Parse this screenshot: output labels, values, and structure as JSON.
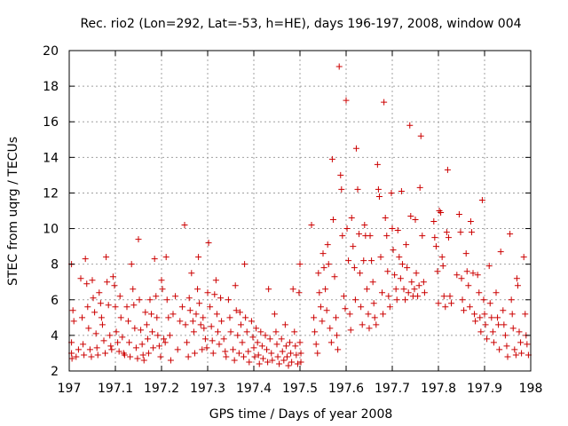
{
  "chart_data": {
    "type": "scatter",
    "title": "Rec. rio2 (Lon=292, Lat=-53, h=HE), days 196-197, 2008, window 004",
    "xlabel": "GPS time / Days of year 2008",
    "ylabel": "STEC from uqrg / TECUs",
    "xlim": [
      197,
      198
    ],
    "ylim": [
      2,
      20
    ],
    "x_ticks": [
      "197",
      "197.1",
      "197.2",
      "197.3",
      "197.4",
      "197.5",
      "197.6",
      "197.7",
      "197.8",
      "197.9",
      "198"
    ],
    "y_ticks": [
      "2",
      "4",
      "6",
      "8",
      "10",
      "12",
      "14",
      "16",
      "18",
      "20"
    ],
    "grid": true,
    "marker": "+",
    "color": "#cc0000",
    "points": [
      [
        197.005,
        8.0
      ],
      [
        197.005,
        3.6
      ],
      [
        197.005,
        3.0
      ],
      [
        197.006,
        2.7
      ],
      [
        197.008,
        5.4
      ],
      [
        197.01,
        4.8
      ],
      [
        197.015,
        2.8
      ],
      [
        197.02,
        3.2
      ],
      [
        197.025,
        7.2
      ],
      [
        197.028,
        5.0
      ],
      [
        197.03,
        3.5
      ],
      [
        197.032,
        2.9
      ],
      [
        197.035,
        8.3
      ],
      [
        197.038,
        6.9
      ],
      [
        197.04,
        5.6
      ],
      [
        197.042,
        4.4
      ],
      [
        197.045,
        3.2
      ],
      [
        197.048,
        2.8
      ],
      [
        197.05,
        7.1
      ],
      [
        197.052,
        6.1
      ],
      [
        197.055,
        5.3
      ],
      [
        197.058,
        4.1
      ],
      [
        197.06,
        3.3
      ],
      [
        197.062,
        2.9
      ],
      [
        197.065,
        6.4
      ],
      [
        197.068,
        5.8
      ],
      [
        197.07,
        5.0
      ],
      [
        197.072,
        4.6
      ],
      [
        197.075,
        3.7
      ],
      [
        197.078,
        3.0
      ],
      [
        197.08,
        8.4
      ],
      [
        197.082,
        7.0
      ],
      [
        197.085,
        5.7
      ],
      [
        197.088,
        4.0
      ],
      [
        197.09,
        3.4
      ],
      [
        197.092,
        3.2
      ],
      [
        197.095,
        7.3
      ],
      [
        197.098,
        6.8
      ],
      [
        197.1,
        5.6
      ],
      [
        197.102,
        4.2
      ],
      [
        197.105,
        3.6
      ],
      [
        197.108,
        3.1
      ],
      [
        197.11,
        6.2
      ],
      [
        197.112,
        5.0
      ],
      [
        197.115,
        3.9
      ],
      [
        197.118,
        3.0
      ],
      [
        197.12,
        2.9
      ],
      [
        197.125,
        5.6
      ],
      [
        197.128,
        4.8
      ],
      [
        197.13,
        3.6
      ],
      [
        197.132,
        2.8
      ],
      [
        197.135,
        8.0
      ],
      [
        197.138,
        6.6
      ],
      [
        197.14,
        5.7
      ],
      [
        197.142,
        4.4
      ],
      [
        197.145,
        3.3
      ],
      [
        197.148,
        2.7
      ],
      [
        197.15,
        9.4
      ],
      [
        197.152,
        6.0
      ],
      [
        197.155,
        4.3
      ],
      [
        197.158,
        3.5
      ],
      [
        197.16,
        2.9
      ],
      [
        197.162,
        2.6
      ],
      [
        197.165,
        5.3
      ],
      [
        197.168,
        4.6
      ],
      [
        197.17,
        3.8
      ],
      [
        197.172,
        3.0
      ],
      [
        197.175,
        6.0
      ],
      [
        197.178,
        5.2
      ],
      [
        197.18,
        4.2
      ],
      [
        197.182,
        3.3
      ],
      [
        197.185,
        8.3
      ],
      [
        197.188,
        6.2
      ],
      [
        197.19,
        5.0
      ],
      [
        197.192,
        4.0
      ],
      [
        197.195,
        3.4
      ],
      [
        197.198,
        2.8
      ],
      [
        197.2,
        7.1
      ],
      [
        197.202,
        6.6
      ],
      [
        197.205,
        3.8
      ],
      [
        197.208,
        3.6
      ],
      [
        197.21,
        8.4
      ],
      [
        197.212,
        6.0
      ],
      [
        197.215,
        5.0
      ],
      [
        197.218,
        4.0
      ],
      [
        197.22,
        2.6
      ],
      [
        197.225,
        5.2
      ],
      [
        197.23,
        6.2
      ],
      [
        197.235,
        3.2
      ],
      [
        197.24,
        4.8
      ],
      [
        197.245,
        5.6
      ],
      [
        197.25,
        10.2
      ],
      [
        197.252,
        4.6
      ],
      [
        197.255,
        3.6
      ],
      [
        197.258,
        2.8
      ],
      [
        197.26,
        6.1
      ],
      [
        197.262,
        5.4
      ],
      [
        197.265,
        7.5
      ],
      [
        197.268,
        4.8
      ],
      [
        197.27,
        4.2
      ],
      [
        197.272,
        3.0
      ],
      [
        197.275,
        5.2
      ],
      [
        197.278,
        6.6
      ],
      [
        197.28,
        8.4
      ],
      [
        197.282,
        5.8
      ],
      [
        197.285,
        4.6
      ],
      [
        197.288,
        3.2
      ],
      [
        197.29,
        5.0
      ],
      [
        197.292,
        4.4
      ],
      [
        197.295,
        3.8
      ],
      [
        197.298,
        3.3
      ],
      [
        197.3,
        6.4
      ],
      [
        197.302,
        9.2
      ],
      [
        197.305,
        5.6
      ],
      [
        197.308,
        4.5
      ],
      [
        197.31,
        3.7
      ],
      [
        197.312,
        3.0
      ],
      [
        197.315,
        6.3
      ],
      [
        197.318,
        7.1
      ],
      [
        197.32,
        5.2
      ],
      [
        197.322,
        4.2
      ],
      [
        197.325,
        3.5
      ],
      [
        197.328,
        6.1
      ],
      [
        197.33,
        4.8
      ],
      [
        197.335,
        3.8
      ],
      [
        197.338,
        3.1
      ],
      [
        197.34,
        2.8
      ],
      [
        197.345,
        6.0
      ],
      [
        197.348,
        5.0
      ],
      [
        197.35,
        4.2
      ],
      [
        197.355,
        3.2
      ],
      [
        197.358,
        2.6
      ],
      [
        197.36,
        6.8
      ],
      [
        197.362,
        5.4
      ],
      [
        197.365,
        4.0
      ],
      [
        197.368,
        3.0
      ],
      [
        197.37,
        5.3
      ],
      [
        197.372,
        4.6
      ],
      [
        197.375,
        3.6
      ],
      [
        197.378,
        2.8
      ],
      [
        197.38,
        8.0
      ],
      [
        197.382,
        5.0
      ],
      [
        197.385,
        4.2
      ],
      [
        197.388,
        3.1
      ],
      [
        197.39,
        2.5
      ],
      [
        197.395,
        4.8
      ],
      [
        197.398,
        3.9
      ],
      [
        197.4,
        3.3
      ],
      [
        197.402,
        2.8
      ],
      [
        197.405,
        4.4
      ],
      [
        197.408,
        3.6
      ],
      [
        197.41,
        2.9
      ],
      [
        197.412,
        2.4
      ],
      [
        197.415,
        4.2
      ],
      [
        197.418,
        3.4
      ],
      [
        197.42,
        2.7
      ],
      [
        197.425,
        4.0
      ],
      [
        197.428,
        3.2
      ],
      [
        197.43,
        2.5
      ],
      [
        197.432,
        6.6
      ],
      [
        197.435,
        3.8
      ],
      [
        197.438,
        3.0
      ],
      [
        197.44,
        2.6
      ],
      [
        197.445,
        5.2
      ],
      [
        197.448,
        4.2
      ],
      [
        197.45,
        3.5
      ],
      [
        197.452,
        2.8
      ],
      [
        197.455,
        2.4
      ],
      [
        197.46,
        3.8
      ],
      [
        197.462,
        3.1
      ],
      [
        197.465,
        2.6
      ],
      [
        197.468,
        4.6
      ],
      [
        197.47,
        3.4
      ],
      [
        197.472,
        2.8
      ],
      [
        197.475,
        2.3
      ],
      [
        197.478,
        3.6
      ],
      [
        197.48,
        3.0
      ],
      [
        197.482,
        2.5
      ],
      [
        197.485,
        6.6
      ],
      [
        197.488,
        4.2
      ],
      [
        197.49,
        3.4
      ],
      [
        197.492,
        2.9
      ],
      [
        197.495,
        2.4
      ],
      [
        197.498,
        6.4
      ],
      [
        197.5,
        8.0
      ],
      [
        197.5,
        3.6
      ],
      [
        197.502,
        3.0
      ],
      [
        197.502,
        2.5
      ],
      [
        197.525,
        10.2
      ],
      [
        197.53,
        5.0
      ],
      [
        197.532,
        4.2
      ],
      [
        197.535,
        3.5
      ],
      [
        197.538,
        3.0
      ],
      [
        197.54,
        7.5
      ],
      [
        197.542,
        6.4
      ],
      [
        197.545,
        5.6
      ],
      [
        197.548,
        4.8
      ],
      [
        197.55,
        8.6
      ],
      [
        197.552,
        7.8
      ],
      [
        197.555,
        6.6
      ],
      [
        197.558,
        5.4
      ],
      [
        197.56,
        9.1
      ],
      [
        197.562,
        8.0
      ],
      [
        197.565,
        4.4
      ],
      [
        197.568,
        3.6
      ],
      [
        197.57,
        13.9
      ],
      [
        197.572,
        10.5
      ],
      [
        197.575,
        7.3
      ],
      [
        197.578,
        5.0
      ],
      [
        197.58,
        4.0
      ],
      [
        197.582,
        3.2
      ],
      [
        197.585,
        19.1
      ],
      [
        197.588,
        13.0
      ],
      [
        197.59,
        12.2
      ],
      [
        197.592,
        9.6
      ],
      [
        197.595,
        6.2
      ],
      [
        197.598,
        5.5
      ],
      [
        197.6,
        17.2
      ],
      [
        197.602,
        10.0
      ],
      [
        197.605,
        8.2
      ],
      [
        197.608,
        5.2
      ],
      [
        197.61,
        4.3
      ],
      [
        197.612,
        10.6
      ],
      [
        197.615,
        9.0
      ],
      [
        197.618,
        7.8
      ],
      [
        197.62,
        6.0
      ],
      [
        197.622,
        14.5
      ],
      [
        197.625,
        12.2
      ],
      [
        197.628,
        9.7
      ],
      [
        197.63,
        7.5
      ],
      [
        197.632,
        5.6
      ],
      [
        197.635,
        4.6
      ],
      [
        197.638,
        8.2
      ],
      [
        197.64,
        10.2
      ],
      [
        197.642,
        9.6
      ],
      [
        197.645,
        6.6
      ],
      [
        197.648,
        5.2
      ],
      [
        197.65,
        4.4
      ],
      [
        197.652,
        9.6
      ],
      [
        197.655,
        8.2
      ],
      [
        197.658,
        7.0
      ],
      [
        197.66,
        5.8
      ],
      [
        197.662,
        5.0
      ],
      [
        197.665,
        4.6
      ],
      [
        197.668,
        13.6
      ],
      [
        197.67,
        12.2
      ],
      [
        197.672,
        11.8
      ],
      [
        197.675,
        8.4
      ],
      [
        197.678,
        6.4
      ],
      [
        197.68,
        5.2
      ],
      [
        197.682,
        17.1
      ],
      [
        197.685,
        10.6
      ],
      [
        197.688,
        9.6
      ],
      [
        197.69,
        7.6
      ],
      [
        197.692,
        6.2
      ],
      [
        197.695,
        5.6
      ],
      [
        197.698,
        12.0
      ],
      [
        197.7,
        10.0
      ],
      [
        197.702,
        8.8
      ],
      [
        197.705,
        7.4
      ],
      [
        197.708,
        6.6
      ],
      [
        197.71,
        6.0
      ],
      [
        197.712,
        9.9
      ],
      [
        197.715,
        8.4
      ],
      [
        197.718,
        7.2
      ],
      [
        197.72,
        12.1
      ],
      [
        197.722,
        8.0
      ],
      [
        197.725,
        6.6
      ],
      [
        197.728,
        6.0
      ],
      [
        197.73,
        9.1
      ],
      [
        197.732,
        7.8
      ],
      [
        197.735,
        6.4
      ],
      [
        197.738,
        15.8
      ],
      [
        197.74,
        10.7
      ],
      [
        197.742,
        7.0
      ],
      [
        197.745,
        6.2
      ],
      [
        197.748,
        6.6
      ],
      [
        197.75,
        10.5
      ],
      [
        197.752,
        7.5
      ],
      [
        197.755,
        6.2
      ],
      [
        197.758,
        6.8
      ],
      [
        197.76,
        12.3
      ],
      [
        197.762,
        15.2
      ],
      [
        197.765,
        9.6
      ],
      [
        197.768,
        7.0
      ],
      [
        197.77,
        6.4
      ],
      [
        197.79,
        10.4
      ],
      [
        197.792,
        9.5
      ],
      [
        197.795,
        9.0
      ],
      [
        197.798,
        7.6
      ],
      [
        197.8,
        5.8
      ],
      [
        197.802,
        11.0
      ],
      [
        197.805,
        10.9
      ],
      [
        197.808,
        8.4
      ],
      [
        197.81,
        7.9
      ],
      [
        197.812,
        6.2
      ],
      [
        197.815,
        5.6
      ],
      [
        197.818,
        9.8
      ],
      [
        197.82,
        13.3
      ],
      [
        197.822,
        9.5
      ],
      [
        197.825,
        6.2
      ],
      [
        197.828,
        5.8
      ],
      [
        197.84,
        7.4
      ],
      [
        197.845,
        10.8
      ],
      [
        197.848,
        9.8
      ],
      [
        197.85,
        7.2
      ],
      [
        197.852,
        6.0
      ],
      [
        197.855,
        5.4
      ],
      [
        197.86,
        8.6
      ],
      [
        197.862,
        7.6
      ],
      [
        197.865,
        6.8
      ],
      [
        197.868,
        5.6
      ],
      [
        197.87,
        10.4
      ],
      [
        197.872,
        9.8
      ],
      [
        197.875,
        7.5
      ],
      [
        197.878,
        5.2
      ],
      [
        197.88,
        4.8
      ],
      [
        197.885,
        7.4
      ],
      [
        197.888,
        6.4
      ],
      [
        197.89,
        5.0
      ],
      [
        197.892,
        4.2
      ],
      [
        197.895,
        11.6
      ],
      [
        197.898,
        6.0
      ],
      [
        197.9,
        5.2
      ],
      [
        197.902,
        4.6
      ],
      [
        197.905,
        3.8
      ],
      [
        197.91,
        7.9
      ],
      [
        197.912,
        5.8
      ],
      [
        197.915,
        5.0
      ],
      [
        197.918,
        4.2
      ],
      [
        197.92,
        3.6
      ],
      [
        197.925,
        6.4
      ],
      [
        197.928,
        5.0
      ],
      [
        197.93,
        4.6
      ],
      [
        197.932,
        3.2
      ],
      [
        197.935,
        8.7
      ],
      [
        197.94,
        5.4
      ],
      [
        197.942,
        4.6
      ],
      [
        197.945,
        4.0
      ],
      [
        197.948,
        3.4
      ],
      [
        197.95,
        2.8
      ],
      [
        197.955,
        9.7
      ],
      [
        197.958,
        6.0
      ],
      [
        197.96,
        5.2
      ],
      [
        197.962,
        4.4
      ],
      [
        197.965,
        3.2
      ],
      [
        197.968,
        2.9
      ],
      [
        197.97,
        7.2
      ],
      [
        197.972,
        6.8
      ],
      [
        197.975,
        4.2
      ],
      [
        197.978,
        3.6
      ],
      [
        197.98,
        3.0
      ],
      [
        197.985,
        8.4
      ],
      [
        197.988,
        5.2
      ],
      [
        197.99,
        4.0
      ],
      [
        197.992,
        3.5
      ],
      [
        197.995,
        2.9
      ]
    ]
  }
}
